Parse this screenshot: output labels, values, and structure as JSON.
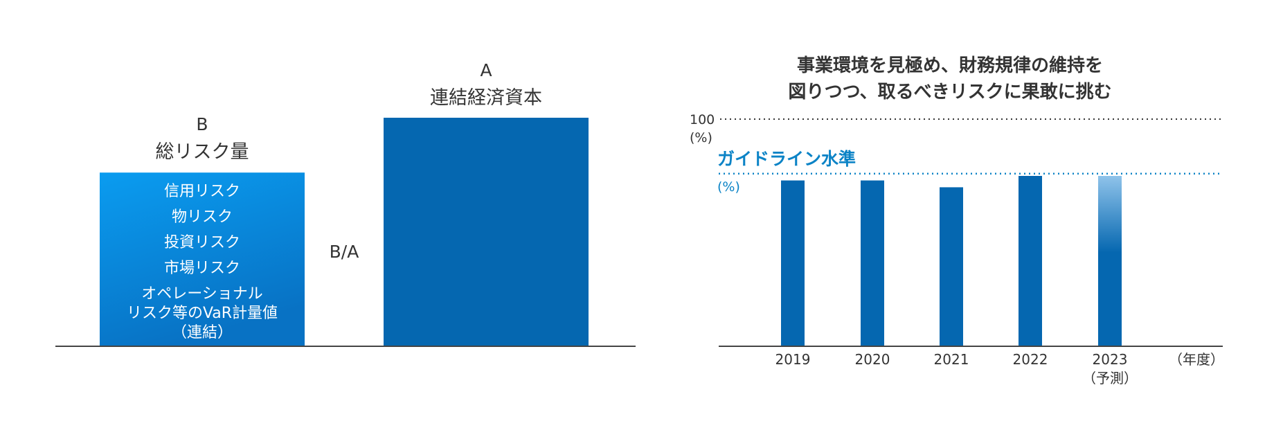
{
  "left_panel": {
    "b_letter": "B",
    "b_title": "総リスク量",
    "a_letter": "A",
    "a_title": "連結経済資本",
    "ratio_label": "B/A",
    "risk_items": [
      "信用リスク",
      "物リスク",
      "投資リスク",
      "市場リスク",
      "オペレーショナル",
      "リスク等のVaR計量値",
      "（連結）"
    ]
  },
  "right_panel": {
    "headline": [
      "事業環境を見極め、財務規律の維持を",
      "図りつつ、取るべきリスクに果敢に挑む"
    ]
  },
  "chart_data": [
    {
      "type": "bar",
      "categories": [
        "B",
        "A"
      ],
      "category_titles": [
        "総リスク量",
        "連結経済資本"
      ],
      "values": [
        76,
        100
      ],
      "title": "",
      "xlabel": "",
      "ylabel": "",
      "ratio_label": "B/A",
      "colors": {
        "B_top": "#0a9cf0",
        "B_bottom": "#0872c4",
        "A": "#0567b0"
      }
    },
    {
      "type": "bar",
      "categories": [
        "2019",
        "2020",
        "2021",
        "2022",
        "2023"
      ],
      "category_sublabels": [
        "",
        "",
        "",
        "",
        "（予測）"
      ],
      "values": [
        73,
        73,
        70,
        75,
        75
      ],
      "max_value": 100,
      "max_label": "100",
      "max_unit": "(%)",
      "guideline_label": "ガイドライン水準",
      "guideline_unit": "(%)",
      "guideline_value": 76,
      "x_unit": "（年度）",
      "ylim": [
        0,
        100
      ],
      "colors": {
        "bar": "#0567b0",
        "forecast_top": "#8fc3ea",
        "guideline": "#0b83c6"
      }
    }
  ]
}
